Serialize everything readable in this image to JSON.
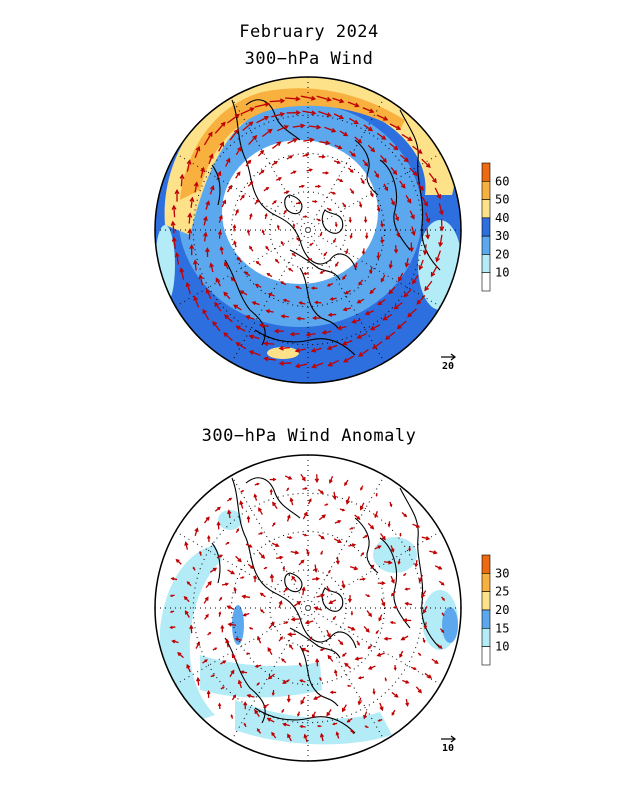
{
  "header": {
    "month": "February 2024"
  },
  "panels": [
    {
      "title": "300−hPa Wind",
      "reference_vector_label": "20",
      "colorbar": {
        "labels": [
          "10",
          "20",
          "30",
          "40",
          "50",
          "60"
        ],
        "colors": [
          "#ffffff",
          "#b3ecf7",
          "#5ba8ef",
          "#2e6fe0",
          "#fde28a",
          "#f8b13e",
          "#ee6a12"
        ]
      },
      "fill_colors": {
        "ring_inner": "#5ba8ef",
        "ring_main": "#2e6fe0",
        "jet_core": "#f8b13e",
        "jet_edge": "#fde28a",
        "calm": "#ffffff",
        "weak": "#b3ecf7"
      }
    },
    {
      "title": "300−hPa Wind Anomaly",
      "reference_vector_label": "10",
      "colorbar": {
        "labels": [
          "10",
          "15",
          "20",
          "25",
          "30"
        ],
        "colors": [
          "#ffffff",
          "#b3ecf7",
          "#5ba8ef",
          "#fde28a",
          "#f8b13e",
          "#ee6a12"
        ]
      },
      "fill_colors": {
        "weak": "#b3ecf7",
        "moderate": "#5ba8ef"
      }
    }
  ],
  "style": {
    "vector_color": "#c00000",
    "coast_color": "#000000",
    "grid_color": "#000000"
  }
}
